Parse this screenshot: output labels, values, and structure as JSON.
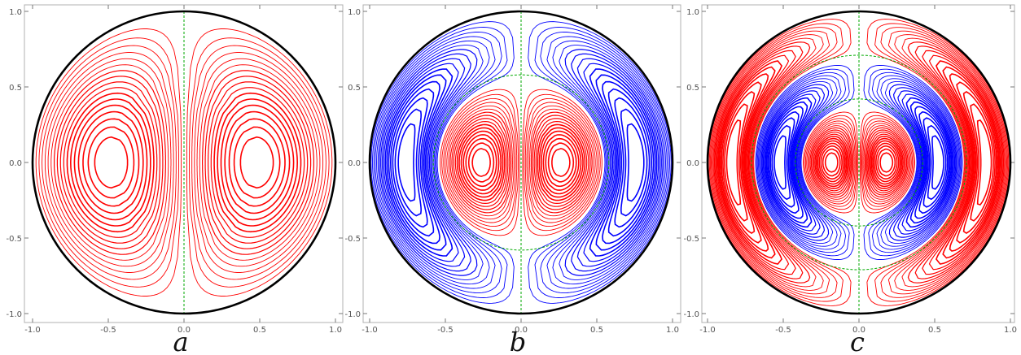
{
  "chart_data": [
    {
      "type": "contour",
      "panel_label": "a",
      "xlim": [
        -1.0,
        1.0
      ],
      "ylim": [
        -1.0,
        1.0
      ],
      "xticks": [
        "-1.0",
        "-0.5",
        "0.0",
        "0.5",
        "1.0"
      ],
      "yticks": [
        "1.0",
        "0.5",
        "0.0",
        "-0.5",
        "-1.0"
      ],
      "boundary": "unit circle",
      "nodal_circle_radii": [],
      "vortices": [
        {
          "cx": -0.61,
          "cy": 0.0,
          "sign": "positive",
          "color": "#ff0000"
        },
        {
          "cx": 0.61,
          "cy": 0.0,
          "sign": "positive",
          "color": "#ff0000"
        }
      ],
      "radial_modes": 1
    },
    {
      "type": "contour",
      "panel_label": "b",
      "xlim": [
        -1.0,
        1.0
      ],
      "ylim": [
        -1.0,
        1.0
      ],
      "xticks": [
        "-1.0",
        "-0.5",
        "0.0",
        "0.5",
        "1.0"
      ],
      "yticks": [
        "1.0",
        "0.5",
        "0.0",
        "-0.5",
        "-1.0"
      ],
      "boundary": "unit circle",
      "nodal_circle_radii": [
        0.58
      ],
      "vortices": [
        {
          "cx": -0.35,
          "cy": 0.0,
          "sign": "positive",
          "color": "#ff0000"
        },
        {
          "cx": 0.35,
          "cy": 0.0,
          "sign": "positive",
          "color": "#ff0000"
        },
        {
          "cx": -0.8,
          "cy": 0.0,
          "sign": "negative",
          "color": "#0000ff"
        },
        {
          "cx": 0.8,
          "cy": 0.0,
          "sign": "negative",
          "color": "#0000ff"
        }
      ],
      "radial_modes": 2
    },
    {
      "type": "contour",
      "panel_label": "c",
      "xlim": [
        -1.0,
        1.0
      ],
      "ylim": [
        -1.0,
        1.0
      ],
      "xticks": [
        "-1.0",
        "-0.5",
        "0.0",
        "0.5",
        "1.0"
      ],
      "yticks": [
        "1.0",
        "0.5",
        "0.0",
        "-0.5",
        "-1.0"
      ],
      "boundary": "unit circle",
      "nodal_circle_radii": [
        0.42,
        0.71
      ],
      "vortices": [
        {
          "cx": -0.25,
          "cy": 0.0,
          "sign": "positive",
          "color": "#ff0000"
        },
        {
          "cx": 0.25,
          "cy": 0.0,
          "sign": "positive",
          "color": "#ff0000"
        },
        {
          "cx": -0.56,
          "cy": 0.0,
          "sign": "negative",
          "color": "#0000ff"
        },
        {
          "cx": 0.56,
          "cy": 0.0,
          "sign": "negative",
          "color": "#0000ff"
        },
        {
          "cx": -0.85,
          "cy": 0.0,
          "sign": "positive",
          "color": "#ff0000"
        },
        {
          "cx": 0.85,
          "cy": 0.0,
          "sign": "positive",
          "color": "#ff0000"
        }
      ],
      "radial_modes": 3
    }
  ],
  "colors": {
    "positive": "#ff0000",
    "negative": "#0000ff",
    "nodal_line": "#00aa00",
    "boundary": "#000000",
    "frame": "#b0b0b0"
  }
}
